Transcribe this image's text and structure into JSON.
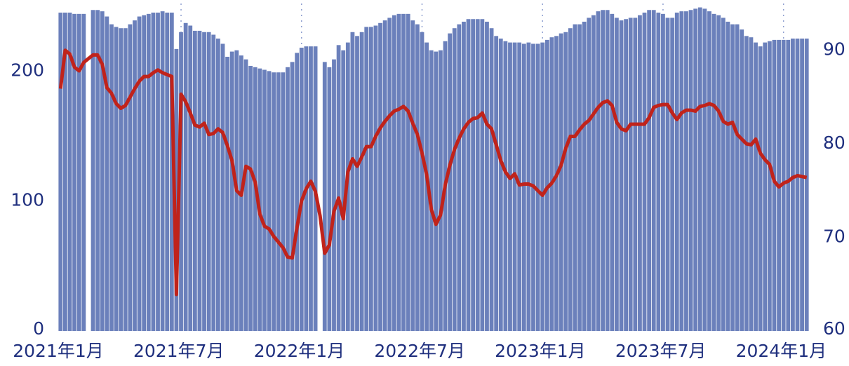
{
  "chart_data": {
    "type": "bar-line",
    "categories": [
      "2021年1月",
      null,
      null,
      null,
      null,
      null,
      null,
      null,
      null,
      null,
      null,
      null,
      null,
      null,
      null,
      null,
      null,
      null,
      null,
      null,
      null,
      null,
      null,
      null,
      null,
      null,
      "2021年7月",
      null,
      null,
      null,
      null,
      null,
      null,
      null,
      null,
      null,
      null,
      null,
      null,
      null,
      null,
      null,
      null,
      null,
      null,
      null,
      null,
      null,
      null,
      null,
      null,
      null,
      "2022年1月",
      null,
      null,
      null,
      null,
      null,
      null,
      null,
      null,
      null,
      null,
      null,
      null,
      null,
      null,
      null,
      null,
      null,
      null,
      null,
      null,
      null,
      null,
      null,
      null,
      null,
      "2022年7月",
      null,
      null,
      null,
      null,
      null,
      null,
      null,
      null,
      null,
      null,
      null,
      null,
      null,
      null,
      null,
      null,
      null,
      null,
      null,
      null,
      null,
      null,
      null,
      null,
      null,
      "2023年1月",
      null,
      null,
      null,
      null,
      null,
      null,
      null,
      null,
      null,
      null,
      null,
      null,
      null,
      null,
      null,
      null,
      null,
      null,
      null,
      null,
      null,
      null,
      null,
      null,
      null,
      "2023年7月",
      null,
      null,
      null,
      null,
      null,
      null,
      null,
      null,
      null,
      null,
      null,
      null,
      null,
      null,
      null,
      null,
      null,
      null,
      null,
      null,
      null,
      null,
      null,
      null,
      null,
      "2024年1月",
      null,
      null,
      null,
      null,
      null
    ],
    "series": [
      {
        "kind": "bar",
        "color": "#6b80bb",
        "values": [
          245,
          245,
          245,
          244,
          244,
          244,
          null,
          247,
          247,
          246,
          242,
          236,
          234,
          233,
          233,
          236,
          239,
          242,
          243,
          244,
          245,
          245,
          246,
          245,
          245,
          217,
          230,
          237,
          235,
          231,
          231,
          230,
          230,
          228,
          225,
          221,
          211,
          215,
          216,
          212,
          209,
          204,
          203,
          202,
          201,
          200,
          199,
          199,
          199,
          203,
          207,
          214,
          218,
          219,
          219,
          219,
          null,
          207,
          203,
          209,
          220,
          216,
          222,
          230,
          227,
          230,
          234,
          234,
          235,
          237,
          239,
          241,
          243,
          244,
          244,
          244,
          239,
          236,
          230,
          222,
          216,
          215,
          216,
          223,
          229,
          233,
          236,
          238,
          240,
          240,
          240,
          240,
          238,
          233,
          227,
          225,
          223,
          222,
          222,
          222,
          221,
          222,
          221,
          221,
          222,
          224,
          226,
          227,
          229,
          230,
          233,
          236,
          236,
          238,
          241,
          243,
          246,
          247,
          247,
          244,
          241,
          239,
          240,
          241,
          241,
          243,
          245,
          247,
          247,
          245,
          244,
          241,
          241,
          245,
          246,
          246,
          247,
          248,
          249,
          248,
          246,
          244,
          243,
          241,
          238,
          236,
          236,
          232,
          227,
          226,
          222,
          219,
          222,
          223,
          224,
          224,
          224,
          224,
          225,
          225,
          225,
          225
        ]
      },
      {
        "kind": "line",
        "axis": "y2",
        "color": "#c0231b",
        "values": [
          85.9,
          90.0,
          89.6,
          88.2,
          87.8,
          88.7,
          89.1,
          89.5,
          89.5,
          88.5,
          86.0,
          85.4,
          84.3,
          83.8,
          84.1,
          85.0,
          85.9,
          86.7,
          87.2,
          87.2,
          87.6,
          87.9,
          87.6,
          87.4,
          87.2,
          63.9,
          85.3,
          84.5,
          83.3,
          82.0,
          81.8,
          82.2,
          81.0,
          81.1,
          81.6,
          81.2,
          79.8,
          78.2,
          75.0,
          74.5,
          77.6,
          77.3,
          75.9,
          72.5,
          71.2,
          70.9,
          70.1,
          69.5,
          68.9,
          67.9,
          67.8,
          71.0,
          73.9,
          75.2,
          76.0,
          74.9,
          72.3,
          68.3,
          69.2,
          72.8,
          74.2,
          72.0,
          77.0,
          78.4,
          77.6,
          78.6,
          79.7,
          79.7,
          80.8,
          81.7,
          82.4,
          83.0,
          83.5,
          83.7,
          84.0,
          83.5,
          82.2,
          81.0,
          79.0,
          76.7,
          73.0,
          71.4,
          72.4,
          75.6,
          77.7,
          79.4,
          80.6,
          81.6,
          82.3,
          82.7,
          82.8,
          83.3,
          82.1,
          81.6,
          79.9,
          78.2,
          77.0,
          76.3,
          76.8,
          75.6,
          75.7,
          75.7,
          75.5,
          75.0,
          74.5,
          75.3,
          75.8,
          76.6,
          77.7,
          79.5,
          80.8,
          80.8,
          81.5,
          82.1,
          82.5,
          83.2,
          83.9,
          84.4,
          84.6,
          84.1,
          82.3,
          81.6,
          81.4,
          82.1,
          82.1,
          82.1,
          82.1,
          82.8,
          83.9,
          84.1,
          84.2,
          84.2,
          83.3,
          82.6,
          83.3,
          83.6,
          83.6,
          83.5,
          84.0,
          84.1,
          84.3,
          84.1,
          83.5,
          82.4,
          82.1,
          82.3,
          81.0,
          80.5,
          80.0,
          79.9,
          80.5,
          79.0,
          78.3,
          77.8,
          76.0,
          75.4,
          75.8,
          76.0,
          76.4,
          76.6,
          76.5,
          76.4
        ]
      }
    ],
    "ylim": [
      0,
      252
    ],
    "yticks": [
      0,
      100,
      200
    ],
    "y2lim": [
      60,
      95
    ],
    "y2ticks": [
      60,
      70,
      80,
      90
    ],
    "grid": "x-dotted"
  }
}
